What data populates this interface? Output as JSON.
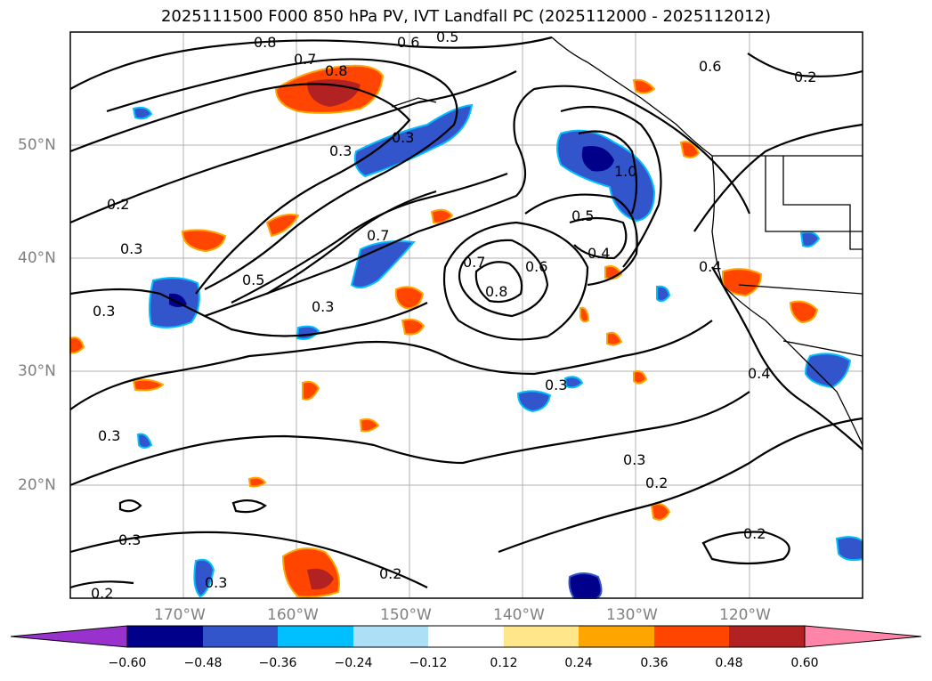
{
  "title": "2025111500 F000 850 hPa PV, IVT Landfall PC (2025112000 - 2025112012)",
  "map": {
    "lat_labels": [
      "50°N",
      "40°N",
      "30°N",
      "20°N"
    ],
    "lon_labels": [
      "170°W",
      "160°W",
      "150°W",
      "140°W",
      "130°W",
      "120°W"
    ],
    "contour_labels": [
      "0.8",
      "0.7",
      "0.6",
      "0.5",
      "0.8",
      "0.3",
      "0.3",
      "0.2",
      "0.3",
      "0.5",
      "0.3",
      "0.7",
      "1.0",
      "0.5",
      "0.4",
      "0.6",
      "0.7",
      "0.8",
      "0.4",
      "0.6",
      "0.2",
      "0.4",
      "0.3",
      "0.3",
      "0.3",
      "0.3",
      "0.2",
      "0.2",
      "0.3",
      "0.2",
      "0.2",
      "0.3"
    ]
  },
  "colorbar": {
    "ticks": [
      "−0.60",
      "−0.48",
      "−0.36",
      "−0.24",
      "−0.12",
      "0.12",
      "0.24",
      "0.36",
      "0.48",
      "0.60"
    ],
    "colors": [
      "#9932CC",
      "#00008B",
      "#3355CC",
      "#00BFFF",
      "#ADDFF7",
      "#FFFFFF",
      "#FFE68A",
      "#FFA500",
      "#FF4500",
      "#B22222",
      "#FF85A8"
    ]
  }
}
